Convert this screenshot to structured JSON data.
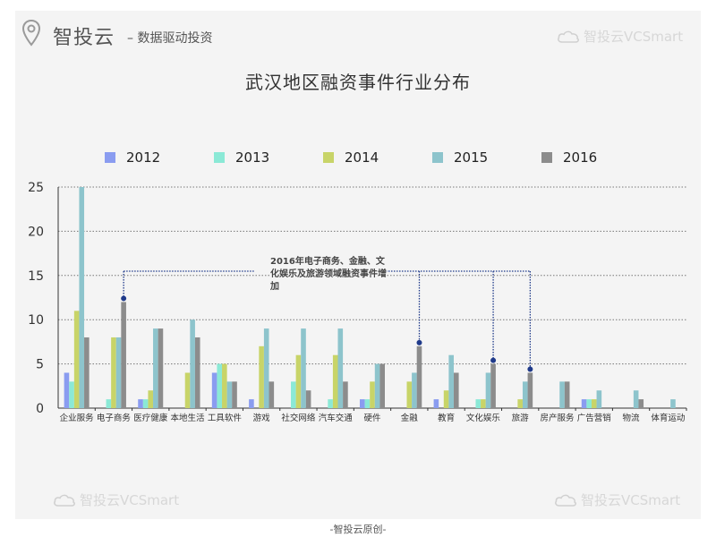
{
  "header": {
    "brand": "智投云",
    "tagline": "– 数据驱动投资",
    "watermark": "智投云VCSmart"
  },
  "footer": {
    "text": "-智投云原创-"
  },
  "annotation": {
    "text": "2016年电子商务、金融、文化娱乐及旅游领域融资事件增加"
  },
  "colors": {
    "2012": "#8a9cf0",
    "2013": "#8be9d6",
    "2014": "#c8d468",
    "2015": "#8dc4cc",
    "2016": "#8c8c8c",
    "annotation": "#1f3a8a"
  },
  "chart_data": {
    "type": "bar",
    "title": "武汉地区融资事件行业分布",
    "xlabel": "",
    "ylabel": "",
    "ylim": [
      0,
      25
    ],
    "yticks": [
      0,
      5,
      10,
      15,
      20,
      25
    ],
    "grid": true,
    "legend_position": "top",
    "categories": [
      "企业服务",
      "电子商务",
      "医疗健康",
      "本地生活",
      "工具软件",
      "游戏",
      "社交网络",
      "汽车交通",
      "硬件",
      "金融",
      "教育",
      "文化娱乐",
      "旅游",
      "房产服务",
      "广告营销",
      "物流",
      "体育运动"
    ],
    "series": [
      {
        "name": "2012",
        "values": [
          4,
          0,
          1,
          0,
          4,
          1,
          0,
          0,
          1,
          0,
          1,
          0,
          0,
          0,
          1,
          0,
          0
        ]
      },
      {
        "name": "2013",
        "values": [
          3,
          1,
          1,
          0,
          5,
          0,
          3,
          1,
          1,
          0,
          0,
          1,
          0,
          0,
          1,
          0,
          0
        ]
      },
      {
        "name": "2014",
        "values": [
          11,
          8,
          2,
          4,
          5,
          7,
          6,
          6,
          3,
          3,
          2,
          1,
          1,
          0,
          1,
          0,
          0
        ]
      },
      {
        "name": "2015",
        "values": [
          25,
          8,
          9,
          10,
          3,
          9,
          9,
          9,
          5,
          4,
          6,
          4,
          3,
          3,
          2,
          2,
          1
        ]
      },
      {
        "name": "2016",
        "values": [
          8,
          12,
          9,
          8,
          3,
          3,
          2,
          3,
          5,
          7,
          4,
          5,
          4,
          3,
          0,
          1,
          0
        ]
      }
    ]
  }
}
